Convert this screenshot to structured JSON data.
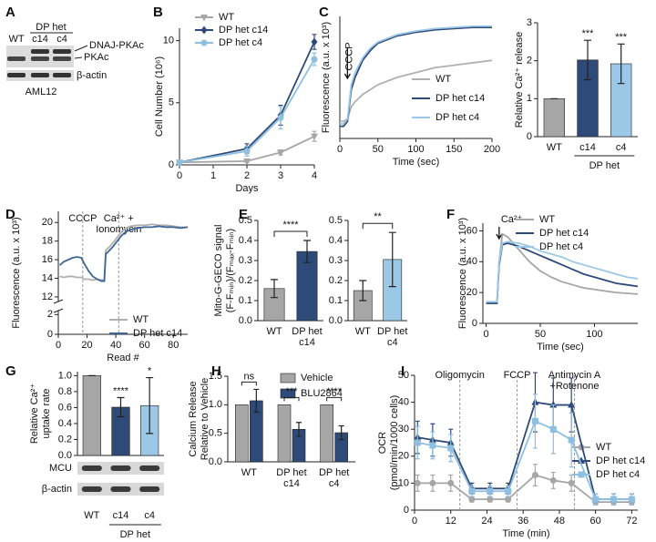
{
  "chart_data": [
    {
      "type": "blot",
      "panel": "A",
      "group_label": "DP het",
      "lanes": [
        "WT",
        "c14",
        "c4"
      ],
      "bands": [
        "DNAJ-PKAc",
        "PKAc",
        "β-actin"
      ],
      "cell_line": "AML12"
    },
    {
      "type": "line",
      "panel": "B",
      "x_label": "Days",
      "y_label": [
        "Cell Number (10⁶)"
      ],
      "x": [
        0,
        2,
        3,
        4
      ],
      "xlim": [
        0,
        4
      ],
      "xticks": [
        0,
        1,
        2,
        3,
        4
      ],
      "ylim": [
        0,
        11
      ],
      "yticks": [
        0,
        5,
        10
      ],
      "series": [
        {
          "name": "WT",
          "color": "#a6a6a6",
          "marker": "triangle-down",
          "values": [
            0.2,
            0.3,
            1.0,
            2.3
          ],
          "errors": [
            0.1,
            0.1,
            0.2,
            0.4
          ]
        },
        {
          "name": "DP het c14",
          "color": "#2e4a78",
          "marker": "diamond",
          "values": [
            0.2,
            1.3,
            4.0,
            9.9
          ],
          "errors": [
            0.1,
            0.4,
            0.8,
            0.6
          ]
        },
        {
          "name": "DP het c4",
          "color": "#8fbfe0",
          "marker": "circle",
          "values": [
            0.2,
            1.1,
            3.8,
            8.5
          ],
          "errors": [
            0.1,
            0.4,
            0.9,
            0.5
          ]
        }
      ]
    },
    {
      "type": "line",
      "panel": "C",
      "x_label": "Time (sec)",
      "y_label": [
        "Fluorescence (a.u. x 10³)"
      ],
      "x": [
        0,
        5,
        10,
        15,
        20,
        30,
        40,
        50,
        75,
        100,
        125,
        150,
        175,
        200
      ],
      "xlim": [
        0,
        200
      ],
      "xticks": [
        0,
        50,
        100,
        150,
        200
      ],
      "ylim": [
        25,
        75
      ],
      "annotation_style": "arrow",
      "annotations": [
        {
          "text": [
            "CCCP"
          ],
          "x": 10
        }
      ],
      "series": [
        {
          "name": "WT",
          "color": "#b0b0b0",
          "values": [
            32,
            32,
            33,
            38,
            40,
            43,
            45,
            47,
            50,
            52,
            54,
            55,
            56,
            57
          ]
        },
        {
          "name": "DP het c14",
          "color": "#2e4a78",
          "values": [
            30,
            30,
            32,
            45,
            50,
            57,
            61,
            64,
            67,
            68.5,
            69.5,
            70,
            70.5,
            70.5
          ]
        },
        {
          "name": "DP het c4",
          "color": "#9cc8e8",
          "values": [
            31,
            31,
            33,
            47,
            52,
            58,
            62,
            64.5,
            67.5,
            69,
            70,
            70.5,
            71,
            71
          ]
        }
      ]
    },
    {
      "type": "bar",
      "y_label": [
        "Relative Ca²⁺ release"
      ],
      "categories": [
        [
          "WT"
        ],
        [
          "c14"
        ],
        [
          "c4"
        ]
      ],
      "values": [
        1,
        2.02,
        1.92
      ],
      "errors": [
        0,
        0.52,
        0.52
      ],
      "colors": [
        "#a6a6a6",
        "#2e4a78",
        "#9cc8e8"
      ],
      "significance": [
        null,
        "***",
        "***"
      ],
      "group_label": "DP het",
      "ylim": [
        0,
        3
      ],
      "yticks": [
        0,
        1,
        2,
        3
      ]
    },
    {
      "type": "line",
      "panel": "D",
      "x_label": "Read #",
      "y_label": [
        "Fluorescence (a.u. x 10³)"
      ],
      "x": [
        1,
        4,
        7,
        10,
        13,
        16,
        18,
        21,
        24,
        27,
        30,
        32,
        33,
        35,
        38,
        41,
        44,
        47,
        50,
        55,
        60,
        65,
        70,
        75,
        80,
        85,
        90
      ],
      "xlim": [
        0,
        90
      ],
      "xticks": [
        0,
        20,
        40,
        60,
        80
      ],
      "ylim": [
        11.5,
        21.2
      ],
      "yticks": [
        12,
        14,
        16,
        18,
        20
      ],
      "ylim_lower": [
        0,
        2.4
      ],
      "yticks_lower": [
        0,
        2
      ],
      "annotation_style": "dashed",
      "annotations": [
        {
          "text": [
            "CCCP"
          ],
          "x": 17
        },
        {
          "text": [
            "Ca²⁺ +",
            "Ionomycin"
          ],
          "x": 42
        }
      ],
      "series": [
        {
          "name": "WT",
          "color": "#b0b0b0",
          "values": [
            14.2,
            14.1,
            14.2,
            14.2,
            14.1,
            14.1,
            13.9,
            13.9,
            13.8,
            13.9,
            13.8,
            13.8,
            17.0,
            17.3,
            17.8,
            18.4,
            19.0,
            19.4,
            19.6,
            19.7,
            19.7,
            19.8,
            19.7,
            19.7,
            19.6,
            19.5,
            19.5
          ]
        },
        {
          "name": "DP het c14",
          "color": "#3d6596",
          "values": [
            15.4,
            15.8,
            16.0,
            16.2,
            16.3,
            16.2,
            15.6,
            14.8,
            14.2,
            13.9,
            13.7,
            13.7,
            16.6,
            16.9,
            17.4,
            18.0,
            18.6,
            19.0,
            19.2,
            19.4,
            19.5,
            19.5,
            19.6,
            19.5,
            19.5,
            19.4,
            19.5
          ]
        }
      ]
    },
    {
      "type": "bar",
      "panel": "E",
      "y_label": [
        "Mito-G-GECO signal",
        "(F-Fₘᵢₙ)/(Fₘₐₓ-Fₘᵢₙ)"
      ],
      "categories": [
        [
          "WT"
        ],
        [
          "DP het",
          "c14"
        ]
      ],
      "values": [
        0.16,
        0.345
      ],
      "errors": [
        0.045,
        0.055
      ],
      "colors": [
        "#a6a6a6",
        "#2e4a78"
      ],
      "comparison": "****",
      "ylim": [
        0,
        0.5
      ],
      "yticks": [
        {
          "value": 0,
          "label": "0.0"
        },
        {
          "value": 0.1,
          "label": "0.1"
        },
        {
          "value": 0.2,
          "label": "0.2"
        },
        {
          "value": 0.3,
          "label": "0.3"
        },
        {
          "value": 0.4,
          "label": "0.4"
        },
        {
          "value": 0.5,
          "label": "0.5"
        }
      ]
    },
    {
      "type": "bar",
      "categories": [
        [
          "WT"
        ],
        [
          "DP het",
          "c4"
        ]
      ],
      "values": [
        0.15,
        0.305
      ],
      "errors": [
        0.05,
        0.135
      ],
      "colors": [
        "#a6a6a6",
        "#9cc8e8"
      ],
      "comparison": "**",
      "ylim": [
        0,
        0.5
      ],
      "yticks": [
        {
          "value": 0,
          "label": "0.0"
        },
        {
          "value": 0.1,
          "label": "0.1"
        },
        {
          "value": 0.2,
          "label": "0.2"
        },
        {
          "value": 0.3,
          "label": "0.3"
        },
        {
          "value": 0.4,
          "label": "0.4"
        },
        {
          "value": 0.5,
          "label": "0.5"
        }
      ]
    },
    {
      "type": "line",
      "panel": "F",
      "x_label": "Time (sec)",
      "y_label": [
        "Fluorescence (a.u. x 10³)"
      ],
      "x": [
        0,
        5,
        10,
        12,
        15,
        20,
        30,
        40,
        50,
        60,
        70,
        80,
        90,
        100,
        110,
        120,
        130,
        140
      ],
      "xlim": [
        -3,
        140
      ],
      "xticks": [
        0,
        50,
        100
      ],
      "ylim": [
        0,
        65
      ],
      "yticks": [
        0,
        20,
        40,
        60
      ],
      "annotation_style": "arrow",
      "annotations": [
        {
          "text": [
            "Ca²⁺"
          ],
          "x": 12
        }
      ],
      "series": [
        {
          "name": "WT",
          "color": "#a6a6a6",
          "values": [
            13,
            13,
            13,
            40,
            58,
            56,
            48,
            40,
            34,
            30,
            27,
            25,
            23,
            22,
            21,
            20,
            19.5,
            19
          ]
        },
        {
          "name": "DP het c14",
          "color": "#2e4a78",
          "values": [
            13,
            13,
            13,
            38,
            51,
            52,
            50,
            47,
            44,
            41,
            38,
            35,
            32,
            30,
            28,
            26,
            25,
            24
          ]
        },
        {
          "name": "DP het c4",
          "color": "#9cc8e8",
          "values": [
            14,
            14,
            14,
            40,
            52,
            53,
            52,
            50,
            47,
            45,
            43,
            40,
            38,
            36,
            34,
            32,
            30,
            29
          ]
        }
      ]
    },
    {
      "type": "bar",
      "panel": "G",
      "y_label": [
        "Relative Ca²⁺",
        "uptake rate"
      ],
      "categories": [
        [
          "WT"
        ],
        [
          "c14"
        ],
        [
          "c4"
        ]
      ],
      "values": [
        1,
        0.605,
        0.625
      ],
      "errors": [
        0,
        0.12,
        0.35
      ],
      "colors": [
        "#a6a6a6",
        "#2e4a78",
        "#9cc8e8"
      ],
      "significance": [
        null,
        "****",
        "*"
      ],
      "group_label": "DP het",
      "blot_bands": [
        "MCU",
        "β-actin"
      ],
      "ylim": [
        0,
        1.05
      ],
      "yticks": [
        {
          "value": 0,
          "label": "0.0"
        },
        {
          "value": 0.2,
          "label": "0.2"
        },
        {
          "value": 0.4,
          "label": "0.4"
        },
        {
          "value": 0.6,
          "label": "0.6"
        },
        {
          "value": 0.8,
          "label": "0.8"
        },
        {
          "value": 1,
          "label": "1.0"
        }
      ]
    },
    {
      "type": "bar",
      "panel": "H",
      "y_label": [
        "Calcium Release",
        "Relative to Vehicle"
      ],
      "categories": [
        [
          "WT"
        ],
        [
          "DP het",
          "c14"
        ],
        [
          "DP het",
          "c4"
        ]
      ],
      "series": [
        {
          "name": "Vehicle",
          "color": "#a6a6a6",
          "values": [
            1,
            1,
            1
          ]
        },
        {
          "name": "BLU2864",
          "color": "#2e4a78",
          "values": [
            1.07,
            0.57,
            0.51
          ],
          "errors": [
            0.2,
            0.12,
            0.12
          ]
        }
      ],
      "significance": [
        "ns",
        "***",
        "****"
      ],
      "ylim": [
        0,
        1.5
      ],
      "yticks": [
        {
          "value": 0,
          "label": "0.0"
        },
        {
          "value": 0.5,
          "label": "0.5"
        },
        {
          "value": 1,
          "label": "1.0"
        },
        {
          "value": 1.5,
          "label": "1.5"
        }
      ]
    },
    {
      "type": "line",
      "panel": "I",
      "x_label": "Time (min)",
      "y_label": [
        "OCR",
        "(pmol/min/1000 cells)"
      ],
      "x": [
        1,
        6,
        12,
        19,
        25,
        31,
        40,
        46,
        52,
        60,
        66,
        72
      ],
      "xlim": [
        0,
        74
      ],
      "xticks": [
        0,
        12,
        24,
        36,
        48,
        60,
        72
      ],
      "ylim": [
        0,
        50
      ],
      "yticks": [
        0,
        10,
        20,
        30,
        40,
        50
      ],
      "annotation_style": "dashed",
      "annotations": [
        {
          "text": [
            "Oligomycin"
          ],
          "x": 15
        },
        {
          "text": [
            "FCCP"
          ],
          "x": 34
        },
        {
          "text": [
            "Antimycin A",
            "+Rotenone"
          ],
          "x": 53
        }
      ],
      "series": [
        {
          "name": "WT",
          "color": "#a6a6a6",
          "marker": "circle",
          "values": [
            10,
            10,
            10,
            4,
            4,
            4,
            13,
            11,
            10,
            3,
            3,
            3
          ],
          "errors": [
            3,
            3,
            3,
            1,
            1,
            1,
            4,
            3,
            3,
            1,
            1,
            1
          ]
        },
        {
          "name": "DP het c14",
          "color": "#2e4a78",
          "marker": "triangle",
          "values": [
            27,
            26,
            25,
            8,
            8,
            8,
            40,
            39,
            39,
            4,
            4,
            4
          ],
          "errors": [
            6,
            6,
            5,
            2,
            2,
            2,
            11,
            10,
            10,
            2,
            2,
            2
          ]
        },
        {
          "name": "DP het c4",
          "color": "#8fbfe0",
          "marker": "square",
          "values": [
            25,
            24,
            23,
            7,
            7,
            7,
            33,
            30,
            26,
            4,
            4,
            4
          ],
          "errors": [
            6,
            5,
            5,
            2,
            2,
            2,
            10,
            9,
            10,
            2,
            2,
            2
          ]
        }
      ]
    }
  ]
}
